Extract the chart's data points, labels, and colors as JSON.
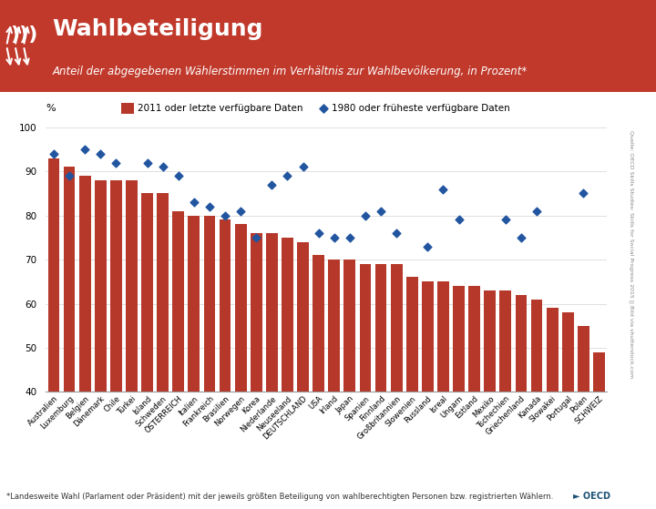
{
  "title": "Wahlbeteiligung",
  "subtitle": "Anteil der abgegebenen Wählerstimmen im Verhältnis zur Wahlbevölkerung, in Prozent*",
  "footer": "*Landesweite Wahl (Parlament oder Präsident) mit der jeweils größten Beteiligung von wahlberechtigten Personen bzw. registrierten Wählern.",
  "source": "Quelle: OECD Skills Studies: Skills for Social Progress 2015 || Bild via shutterstock.com",
  "ylabel": "%",
  "legend_bar": "2011 oder letzte verfügbare Daten",
  "legend_dot": "1980 oder früheste verfügbare Daten",
  "ylim": [
    40,
    100
  ],
  "header_bg": "#c0392b",
  "bar_color": "#b5382a",
  "dot_color": "#2255a0",
  "countries": [
    "Australien",
    "Luxemburg",
    "Belgien",
    "Dänemark",
    "Chile",
    "Türkei",
    "Island",
    "Schweden",
    "ÖSTERREICH",
    "Italien",
    "Frankreich",
    "Brasilien",
    "Norwegen",
    "Korea",
    "Niederlande",
    "Neuseeland",
    "DEUTSCHLAND",
    "USA",
    "Irland",
    "Japan",
    "Spanien",
    "Finnland",
    "Großbritannien",
    "Slowenien",
    "Russland",
    "Isreal",
    "Ungarn",
    "Estland",
    "Mexiko",
    "Tschechien",
    "Griechenland",
    "Kanada",
    "Slowakei",
    "Portugal",
    "Polen",
    "SCHWEIZ"
  ],
  "bar_values": [
    93,
    91,
    89,
    88,
    88,
    88,
    85,
    85,
    81,
    80,
    80,
    79,
    78,
    76,
    76,
    75,
    74,
    71,
    70,
    70,
    69,
    69,
    69,
    66,
    65,
    65,
    64,
    64,
    63,
    63,
    62,
    61,
    59,
    58,
    55,
    49
  ],
  "dot_values": [
    94,
    89,
    95,
    94,
    92,
    null,
    92,
    91,
    89,
    83,
    82,
    80,
    81,
    75,
    87,
    89,
    91,
    76,
    75,
    75,
    80,
    81,
    76,
    null,
    73,
    86,
    79,
    null,
    null,
    79,
    75,
    81,
    null,
    null,
    85,
    null
  ]
}
